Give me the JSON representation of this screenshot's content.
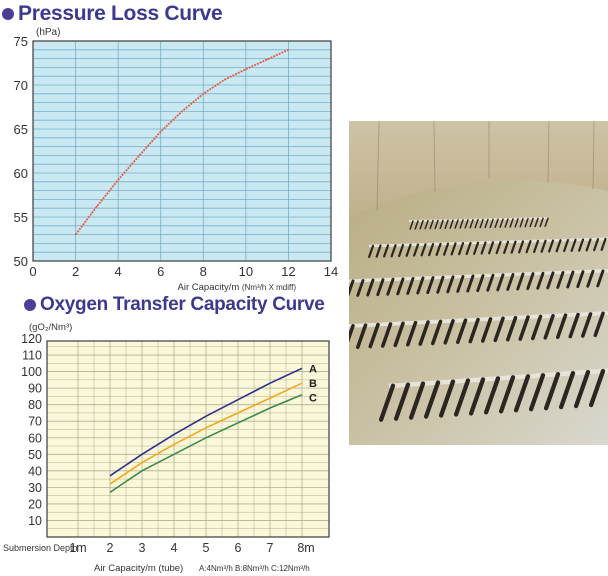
{
  "headings": {
    "pressure": "Pressure Loss Curve",
    "oxygen": "Oxygen Transfer Capacity Curve"
  },
  "colors": {
    "heading": "#3b3a8f",
    "bullet": "#4a3f96",
    "chart1_bg": "#c9e8f1",
    "chart1_grid": "#5fa3c4",
    "chart1_line": "#e0604a",
    "chart2_bg": "#fbf8d9",
    "chart2_grid": "#a6a487",
    "series_a": "#2e2f8a",
    "series_b": "#f2a81d",
    "series_c": "#3f8a4a"
  },
  "photo": {
    "icon": "aeration-tank-photo"
  },
  "chart_data": [
    {
      "type": "line",
      "title": "Pressure Loss Curve",
      "ylabel": "(hPa)",
      "xlabel": "Air Capacity/m",
      "xlabel_unit": "(Nm³/h X mdiff)",
      "xlim": [
        0,
        14
      ],
      "ylim": [
        50,
        75
      ],
      "xticks": [
        "0",
        "2",
        "4",
        "6",
        "8",
        "10",
        "12",
        "14"
      ],
      "yticks": [
        "50",
        "55",
        "60",
        "65",
        "70",
        "75"
      ],
      "grid": true,
      "series": [
        {
          "x": [
            2,
            3,
            4,
            5,
            6,
            7,
            8,
            9,
            10,
            11,
            12
          ],
          "values": [
            53,
            56.2,
            59.2,
            62,
            64.7,
            67,
            69,
            70.6,
            71.8,
            72.9,
            74
          ]
        }
      ]
    },
    {
      "type": "line",
      "title": "Oxygen Transfer Capacity Curve",
      "ylabel": "(gO₂/Nm³)",
      "xlabel": "Air Capacity/m (tube)",
      "xlabel_note": "A:4Nm³/h  B:8Nm³/h  C:12Nm³/h",
      "x_row_label": "Submersion Depth",
      "xlim": [
        0,
        8
      ],
      "ylim": [
        0,
        120
      ],
      "xticks": [
        "1m",
        "2",
        "3",
        "4",
        "5",
        "6",
        "7",
        "8m"
      ],
      "yticks": [
        "10",
        "20",
        "30",
        "40",
        "50",
        "60",
        "70",
        "80",
        "90",
        "100",
        "110",
        "120"
      ],
      "grid": true,
      "series": [
        {
          "name": "A",
          "x": [
            2,
            3,
            4,
            5,
            6,
            7,
            8
          ],
          "values": [
            37,
            50,
            62,
            73,
            83,
            93,
            102
          ]
        },
        {
          "name": "B",
          "x": [
            2,
            3,
            4,
            5,
            6,
            7,
            8
          ],
          "values": [
            32,
            45,
            56,
            66,
            75,
            84,
            93
          ]
        },
        {
          "name": "C",
          "x": [
            2,
            3,
            4,
            5,
            6,
            7,
            8
          ],
          "values": [
            27,
            40,
            50,
            60,
            69,
            78,
            86
          ]
        }
      ]
    }
  ]
}
